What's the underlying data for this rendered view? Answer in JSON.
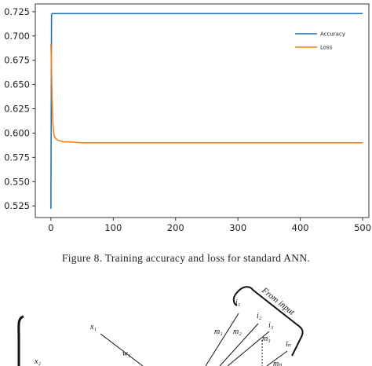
{
  "chart_data": {
    "type": "line",
    "xlim": [
      -25,
      510
    ],
    "ylim": [
      0.513,
      0.733
    ],
    "x_ticks": [
      0,
      100,
      200,
      300,
      400,
      500
    ],
    "y_ticks": [
      0.525,
      0.55,
      0.575,
      0.6,
      0.625,
      0.65,
      0.675,
      0.7,
      0.725
    ],
    "x_tick_labels": [
      "0",
      "100",
      "200",
      "300",
      "400",
      "500"
    ],
    "y_tick_labels": [
      "0.525",
      "0.550",
      "0.575",
      "0.600",
      "0.625",
      "0.650",
      "0.675",
      "0.700",
      "0.725"
    ],
    "legend_position": "upper right",
    "series": [
      {
        "name": "Accuracy",
        "color": "#1f77b4",
        "x": [
          0,
          1,
          2,
          3,
          5,
          10,
          50,
          100,
          200,
          300,
          400,
          500
        ],
        "y": [
          0.522,
          0.722,
          0.723,
          0.723,
          0.723,
          0.723,
          0.723,
          0.723,
          0.723,
          0.723,
          0.723,
          0.723
        ]
      },
      {
        "name": "Loss",
        "color": "#ff7f0e",
        "x": [
          0,
          1,
          2,
          3,
          4,
          5,
          7,
          10,
          15,
          20,
          30,
          50,
          100,
          200,
          300,
          400,
          500
        ],
        "y": [
          0.692,
          0.665,
          0.632,
          0.612,
          0.603,
          0.598,
          0.595,
          0.593,
          0.592,
          0.591,
          0.591,
          0.59,
          0.59,
          0.59,
          0.59,
          0.59,
          0.59
        ]
      }
    ]
  },
  "caption": "Figure 8. Training accuracy and loss for standard ANN.",
  "diagram": {
    "labels": {
      "x1": "x₁",
      "x2": "x₂",
      "w1": "w₁",
      "i1": "i₁",
      "i2": "i₂",
      "i3": "i₃",
      "in": "iₙ",
      "m1": "m₁",
      "m2": "m₂",
      "m3": "m₃",
      "mn": "mₙ",
      "from_input": "From input"
    }
  }
}
